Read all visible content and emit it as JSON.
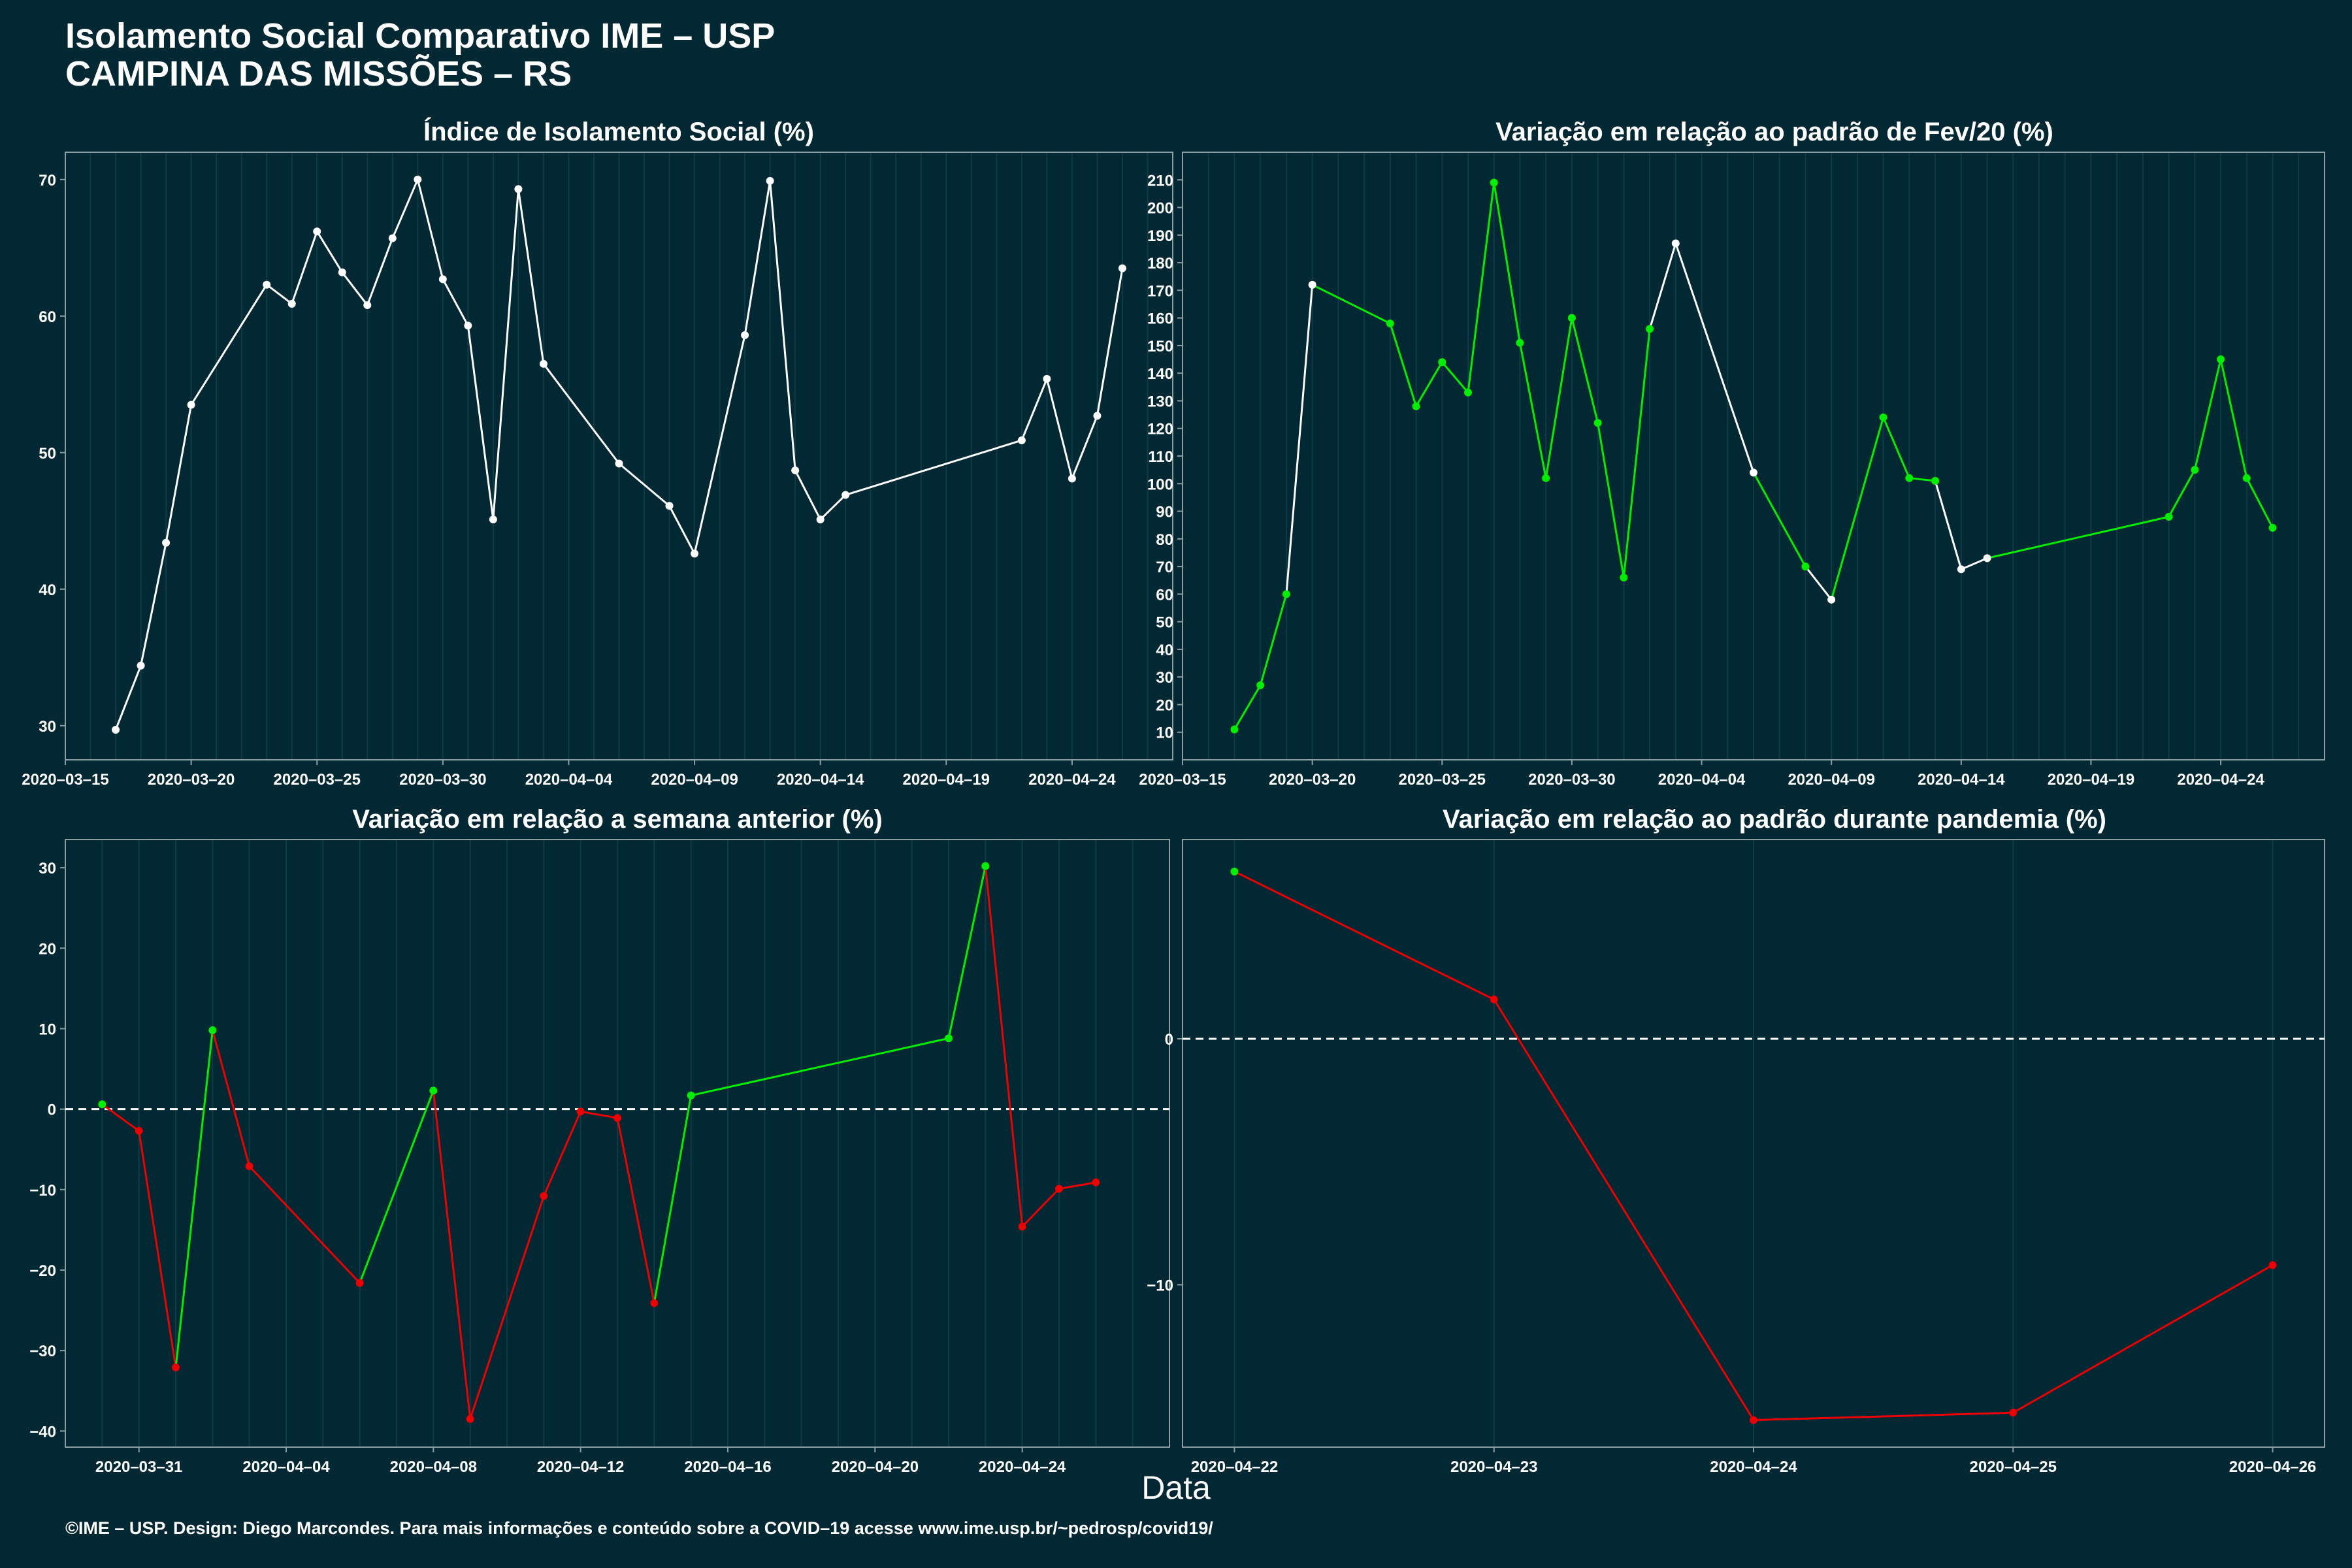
{
  "header": {
    "title_line1": "Isolamento Social Comparativo IME – USP",
    "title_line2": "CAMPINA DAS MISSÕES – RS"
  },
  "footer": "©IME – USP. Design: Diego Marcondes. Para mais informações e conteúdo sobre a COVID–19 acesse www.ime.usp.br/~pedrosp/covid19/",
  "xlabel": "Data",
  "colors": {
    "background": "#022833",
    "white": "#ffffff",
    "green": "#00ee00",
    "red": "#ee0000",
    "grid": "#0e3c46",
    "axis": "#8a9ea3"
  },
  "chart_data": [
    {
      "type": "line",
      "title": "Índice de Isolamento Social (%)",
      "xlim": [
        "2020-03-15",
        "2020-04-28"
      ],
      "ylim": [
        27.5,
        72
      ],
      "yticks": [
        30,
        40,
        50,
        60,
        70
      ],
      "xticks": [
        "2020-03-15",
        "2020-03-20",
        "2020-03-25",
        "2020-03-30",
        "2020-04-04",
        "2020-04-09",
        "2020-04-14",
        "2020-04-19",
        "2020-04-24"
      ],
      "points": [
        {
          "x": "2020-03-17",
          "y": 29.7,
          "c": "white"
        },
        {
          "x": "2020-03-18",
          "y": 34.4,
          "c": "white"
        },
        {
          "x": "2020-03-19",
          "y": 43.4,
          "c": "white"
        },
        {
          "x": "2020-03-20",
          "y": 53.5,
          "c": "white"
        },
        {
          "x": "2020-03-23",
          "y": 62.3,
          "c": "white"
        },
        {
          "x": "2020-03-24",
          "y": 60.9,
          "c": "white"
        },
        {
          "x": "2020-03-25",
          "y": 66.2,
          "c": "white"
        },
        {
          "x": "2020-03-26",
          "y": 63.2,
          "c": "white"
        },
        {
          "x": "2020-03-27",
          "y": 60.8,
          "c": "white"
        },
        {
          "x": "2020-03-28",
          "y": 65.7,
          "c": "white"
        },
        {
          "x": "2020-03-29",
          "y": 70.0,
          "c": "white"
        },
        {
          "x": "2020-03-30",
          "y": 62.7,
          "c": "white"
        },
        {
          "x": "2020-03-31",
          "y": 59.3,
          "c": "white"
        },
        {
          "x": "2020-04-01",
          "y": 45.1,
          "c": "white"
        },
        {
          "x": "2020-04-02",
          "y": 69.3,
          "c": "white"
        },
        {
          "x": "2020-04-03",
          "y": 56.5,
          "c": "white"
        },
        {
          "x": "2020-04-06",
          "y": 49.2,
          "c": "white"
        },
        {
          "x": "2020-04-08",
          "y": 46.1,
          "c": "white"
        },
        {
          "x": "2020-04-09",
          "y": 42.6,
          "c": "white"
        },
        {
          "x": "2020-04-11",
          "y": 58.6,
          "c": "white"
        },
        {
          "x": "2020-04-12",
          "y": 69.9,
          "c": "white"
        },
        {
          "x": "2020-04-13",
          "y": 48.7,
          "c": "white"
        },
        {
          "x": "2020-04-14",
          "y": 45.1,
          "c": "white"
        },
        {
          "x": "2020-04-15",
          "y": 46.9,
          "c": "white"
        },
        {
          "x": "2020-04-22",
          "y": 50.9,
          "c": "white"
        },
        {
          "x": "2020-04-23",
          "y": 55.4,
          "c": "white"
        },
        {
          "x": "2020-04-24",
          "y": 48.1,
          "c": "white"
        },
        {
          "x": "2020-04-25",
          "y": 52.7,
          "c": "white"
        },
        {
          "x": "2020-04-26",
          "y": 63.5,
          "c": "white"
        }
      ]
    },
    {
      "type": "line",
      "title": "Variação em relação ao padrão de Fev/20 (%)",
      "xlim": [
        "2020-03-15",
        "2020-04-28"
      ],
      "ylim": [
        0,
        220
      ],
      "yticks": [
        10,
        20,
        30,
        40,
        50,
        60,
        70,
        80,
        90,
        100,
        110,
        120,
        130,
        140,
        150,
        160,
        170,
        180,
        190,
        200,
        210
      ],
      "xticks": [
        "2020-03-15",
        "2020-03-20",
        "2020-03-25",
        "2020-03-30",
        "2020-04-04",
        "2020-04-09",
        "2020-04-14",
        "2020-04-19",
        "2020-04-24"
      ],
      "points": [
        {
          "x": "2020-03-17",
          "y": 11,
          "c": "green"
        },
        {
          "x": "2020-03-18",
          "y": 27,
          "c": "green"
        },
        {
          "x": "2020-03-19",
          "y": 60,
          "c": "green"
        },
        {
          "x": "2020-03-20",
          "y": 172,
          "c": "white"
        },
        {
          "x": "2020-03-23",
          "y": 158,
          "c": "green"
        },
        {
          "x": "2020-03-24",
          "y": 128,
          "c": "green"
        },
        {
          "x": "2020-03-25",
          "y": 144,
          "c": "green"
        },
        {
          "x": "2020-03-26",
          "y": 133,
          "c": "green"
        },
        {
          "x": "2020-03-27",
          "y": 209,
          "c": "green"
        },
        {
          "x": "2020-03-28",
          "y": 151,
          "c": "green"
        },
        {
          "x": "2020-03-29",
          "y": 102,
          "c": "green"
        },
        {
          "x": "2020-03-30",
          "y": 160,
          "c": "green"
        },
        {
          "x": "2020-03-31",
          "y": 122,
          "c": "green"
        },
        {
          "x": "2020-04-01",
          "y": 66,
          "c": "green"
        },
        {
          "x": "2020-04-02",
          "y": 156,
          "c": "green"
        },
        {
          "x": "2020-04-03",
          "y": 187,
          "c": "white"
        },
        {
          "x": "2020-04-06",
          "y": 104,
          "c": "white"
        },
        {
          "x": "2020-04-08",
          "y": 70,
          "c": "green"
        },
        {
          "x": "2020-04-09",
          "y": 58,
          "c": "white"
        },
        {
          "x": "2020-04-11",
          "y": 124,
          "c": "green"
        },
        {
          "x": "2020-04-12",
          "y": 102,
          "c": "green"
        },
        {
          "x": "2020-04-13",
          "y": 101,
          "c": "green"
        },
        {
          "x": "2020-04-14",
          "y": 69,
          "c": "white"
        },
        {
          "x": "2020-04-15",
          "y": 73,
          "c": "white"
        },
        {
          "x": "2020-04-22",
          "y": 88,
          "c": "green"
        },
        {
          "x": "2020-04-23",
          "y": 105,
          "c": "green"
        },
        {
          "x": "2020-04-24",
          "y": 145,
          "c": "green"
        },
        {
          "x": "2020-04-25",
          "y": 102,
          "c": "green"
        },
        {
          "x": "2020-04-26",
          "y": 84,
          "c": "green"
        }
      ]
    },
    {
      "type": "line",
      "title": "Variação em relação a semana anterior (%)",
      "xlim": [
        "2020-03-29",
        "2020-04-28"
      ],
      "ylim": [
        -42,
        33.5
      ],
      "yticks": [
        -40,
        -30,
        -20,
        -10,
        0,
        10,
        20,
        30
      ],
      "xticks": [
        "2020-03-31",
        "2020-04-04",
        "2020-04-08",
        "2020-04-12",
        "2020-04-16",
        "2020-04-20",
        "2020-04-24"
      ],
      "zero_line": true,
      "points": [
        {
          "x": "2020-03-30",
          "y": 0.6,
          "c": "green"
        },
        {
          "x": "2020-03-31",
          "y": -2.7,
          "c": "red"
        },
        {
          "x": "2020-04-01",
          "y": -32.1,
          "c": "red"
        },
        {
          "x": "2020-04-02",
          "y": 9.8,
          "c": "green"
        },
        {
          "x": "2020-04-03",
          "y": -7.1,
          "c": "red"
        },
        {
          "x": "2020-04-06",
          "y": -21.6,
          "c": "red"
        },
        {
          "x": "2020-04-08",
          "y": 2.3,
          "c": "green"
        },
        {
          "x": "2020-04-09",
          "y": -38.5,
          "c": "red"
        },
        {
          "x": "2020-04-11",
          "y": -10.8,
          "c": "red"
        },
        {
          "x": "2020-04-12",
          "y": -0.3,
          "c": "red"
        },
        {
          "x": "2020-04-13",
          "y": -1.1,
          "c": "red"
        },
        {
          "x": "2020-04-14",
          "y": -24.1,
          "c": "red"
        },
        {
          "x": "2020-04-15",
          "y": 1.7,
          "c": "green"
        },
        {
          "x": "2020-04-22",
          "y": 8.8,
          "c": "green"
        },
        {
          "x": "2020-04-23",
          "y": 30.2,
          "c": "green"
        },
        {
          "x": "2020-04-24",
          "y": -14.6,
          "c": "red"
        },
        {
          "x": "2020-04-25",
          "y": -9.9,
          "c": "red"
        },
        {
          "x": "2020-04-26",
          "y": -9.1,
          "c": "red"
        }
      ]
    },
    {
      "type": "line",
      "title": "Variação em relação ao padrão durante pandemia (%)",
      "xlim": [
        "2020-04-21.8",
        "2020-04-26.2"
      ],
      "ylim": [
        -16.6,
        8.1
      ],
      "yticks": [
        -10,
        0
      ],
      "xticks": [
        "2020-04-22",
        "2020-04-23",
        "2020-04-24",
        "2020-04-25",
        "2020-04-26"
      ],
      "zero_line": true,
      "points": [
        {
          "x": "2020-04-22",
          "y": 6.8,
          "c": "green"
        },
        {
          "x": "2020-04-23",
          "y": 1.6,
          "c": "red"
        },
        {
          "x": "2020-04-24",
          "y": -15.5,
          "c": "red"
        },
        {
          "x": "2020-04-25",
          "y": -15.2,
          "c": "red"
        },
        {
          "x": "2020-04-26",
          "y": -9.2,
          "c": "red"
        }
      ]
    }
  ]
}
